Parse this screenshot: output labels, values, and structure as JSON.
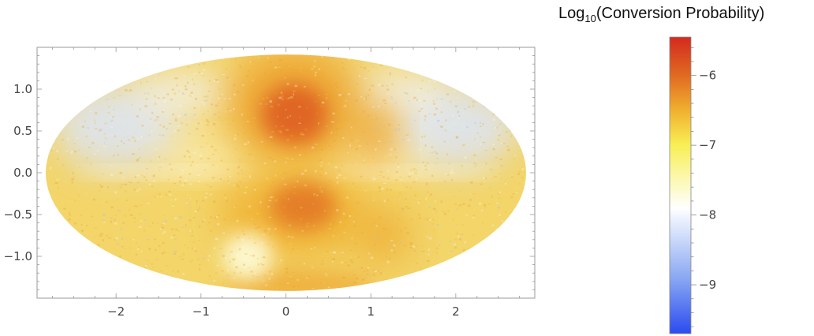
{
  "chart_data": {
    "type": "heatmap",
    "projection": "Mollweide (all-sky map)",
    "x": {
      "ticks": [
        -2,
        -1,
        0,
        1,
        2
      ],
      "tick_labels": [
        "−2",
        "−1",
        "0",
        "1",
        "2"
      ],
      "range": [
        -2.93,
        2.93
      ]
    },
    "y": {
      "ticks": [
        1.0,
        0.5,
        0.0,
        -0.5,
        -1.0
      ],
      "tick_labels": [
        "1.0",
        "0.5",
        "0.0",
        "−0.5",
        "−1.0"
      ],
      "range": [
        -1.5,
        1.5
      ]
    },
    "colorbar": {
      "title_main": "Log",
      "title_sub": "10",
      "title_rest": "(Conversion Probability)",
      "range": [
        -9.7,
        -5.45
      ],
      "ticks": [
        -6,
        -7,
        -8,
        -9
      ],
      "tick_labels": [
        "−6",
        "−7",
        "−8",
        "−9"
      ],
      "colors": [
        "#2b4bf0",
        "#8aa8f2",
        "#ffffff",
        "#f8ef55",
        "#f0b030",
        "#e06a22",
        "#d42a1e"
      ],
      "color_stops": [
        -9.7,
        -8.9,
        -7.9,
        -7.0,
        -6.5,
        -6.0,
        -5.45
      ]
    },
    "features": [
      {
        "name": "northern lobe",
        "center": [
          0.1,
          0.75
        ],
        "peak": -5.9
      },
      {
        "name": "southern lobe",
        "center": [
          0.1,
          -0.4
        ],
        "peak": -6.1
      },
      {
        "name": "southern low-probability spot",
        "center": [
          -0.45,
          -1.0
        ],
        "peak": -7.7
      },
      {
        "name": "high-latitude wings",
        "peak": -8.2
      },
      {
        "name": "equatorial plane",
        "center": [
          0,
          0
        ],
        "peak": -7.5
      }
    ]
  }
}
